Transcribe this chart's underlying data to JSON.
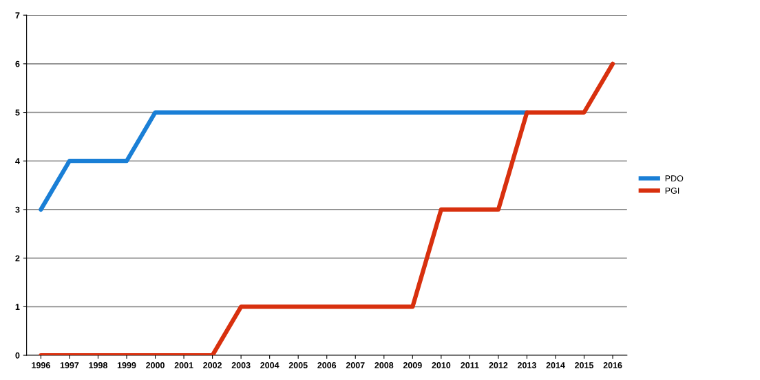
{
  "chart_data": {
    "type": "line",
    "categories": [
      "1996",
      "1997",
      "1998",
      "1999",
      "2000",
      "2001",
      "2002",
      "2003",
      "2004",
      "2005",
      "2006",
      "2007",
      "2008",
      "2009",
      "2010",
      "2011",
      "2012",
      "2013",
      "2014",
      "2015",
      "2016"
    ],
    "series": [
      {
        "name": "PDO",
        "color": "#1a7fd6",
        "values": [
          3,
          4,
          4,
          4,
          5,
          5,
          5,
          5,
          5,
          5,
          5,
          5,
          5,
          5,
          5,
          5,
          5,
          5,
          null,
          null,
          null
        ]
      },
      {
        "name": "PGI",
        "color": "#d8300e",
        "values": [
          0,
          0,
          0,
          0,
          0,
          0,
          0,
          1,
          1,
          1,
          1,
          1,
          1,
          1,
          3,
          3,
          3,
          5,
          5,
          5,
          6
        ]
      }
    ],
    "ylim": [
      0,
      7
    ],
    "yticks": [
      0,
      1,
      2,
      3,
      4,
      5,
      6,
      7
    ],
    "grid": "y",
    "legend": "right",
    "marker": "none",
    "line_style": "solid"
  }
}
